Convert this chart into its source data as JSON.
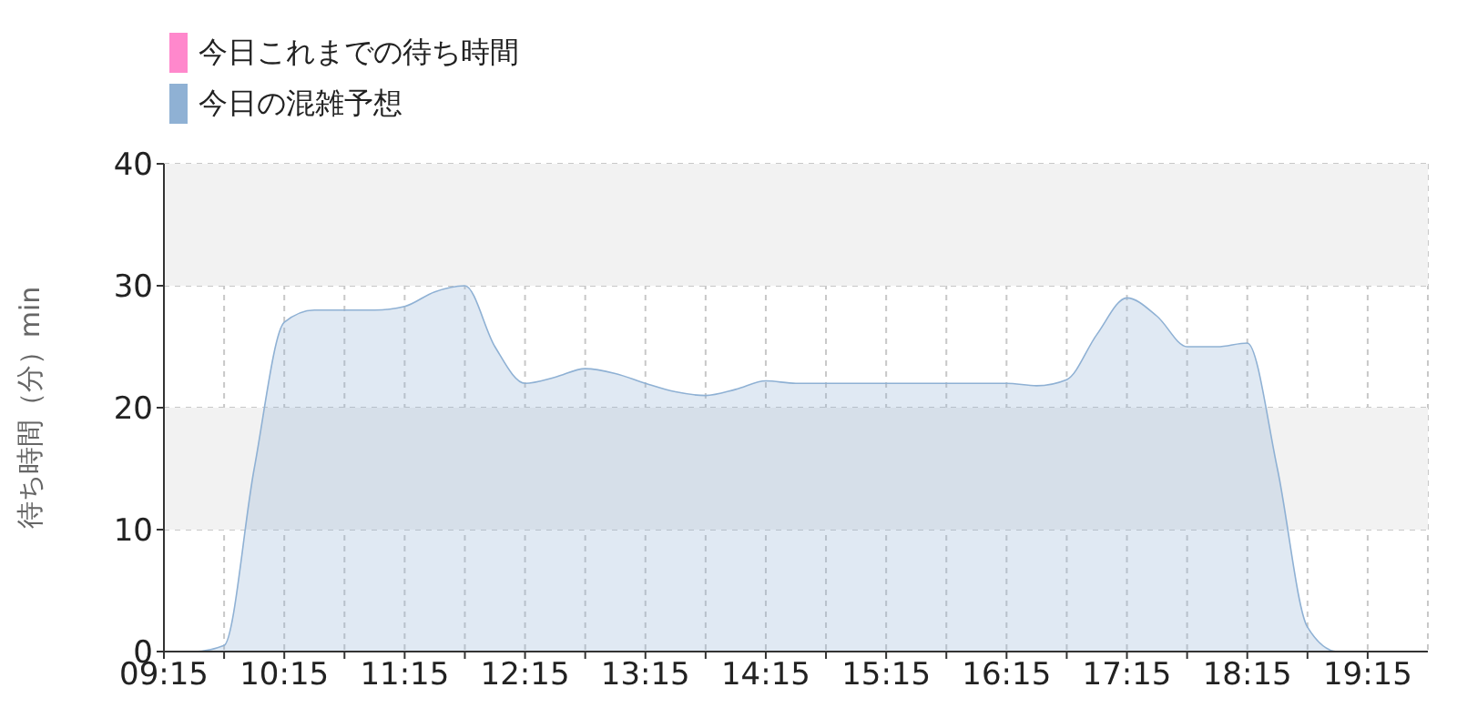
{
  "chart_data": {
    "type": "area",
    "ylabel": "待ち時間（分）min",
    "legend": "top left",
    "grid": true,
    "x": [
      9.25,
      9.5,
      9.75,
      10.0,
      10.25,
      10.5,
      10.75,
      11.0,
      11.25,
      11.5,
      11.75,
      12.0,
      12.25,
      12.5,
      12.75,
      13.0,
      13.25,
      13.5,
      13.75,
      14.0,
      14.25,
      14.5,
      14.75,
      15.0,
      15.25,
      15.5,
      15.75,
      16.0,
      16.25,
      16.5,
      16.75,
      17.0,
      17.25,
      17.5,
      17.75,
      18.0,
      18.25,
      18.5,
      18.75,
      19.0,
      19.25,
      19.5,
      19.75
    ],
    "series": [
      {
        "name": "今日これまでの待ち時間",
        "color": "#ff88cc",
        "values": [
          null,
          null,
          null,
          null,
          null,
          null,
          null,
          null,
          null,
          null,
          null,
          null,
          null,
          null,
          null,
          null,
          null,
          null,
          null,
          null,
          null,
          null,
          null,
          null,
          null,
          null,
          null,
          null,
          null,
          null,
          null,
          null,
          null,
          null,
          null,
          null,
          null,
          null,
          null,
          null,
          null,
          null,
          null
        ]
      },
      {
        "name": "今日の混雑予想",
        "color": "#8fb1d4",
        "values": [
          0,
          0,
          0.5,
          15,
          27,
          28,
          28,
          28,
          28.3,
          29.5,
          30,
          25,
          22,
          22.5,
          23.2,
          22.8,
          22,
          21.3,
          21,
          21.5,
          22.2,
          22,
          22,
          22,
          22,
          22,
          22,
          22,
          22,
          21.8,
          22.3,
          26,
          29,
          27.5,
          25,
          25,
          25.3,
          15,
          2,
          0,
          0,
          0,
          0
        ]
      }
    ],
    "xlim": [
      9.25,
      19.75
    ],
    "xticks": [
      {
        "value": 9.25,
        "label": "09:15"
      },
      {
        "value": 9.75,
        "label": null
      },
      {
        "value": 10.25,
        "label": "10:15"
      },
      {
        "value": 10.75,
        "label": null
      },
      {
        "value": 11.25,
        "label": "11:15"
      },
      {
        "value": 11.75,
        "label": null
      },
      {
        "value": 12.25,
        "label": "12:15"
      },
      {
        "value": 12.75,
        "label": null
      },
      {
        "value": 13.25,
        "label": "13:15"
      },
      {
        "value": 13.75,
        "label": null
      },
      {
        "value": 14.25,
        "label": "14:15"
      },
      {
        "value": 14.75,
        "label": null
      },
      {
        "value": 15.25,
        "label": "15:15"
      },
      {
        "value": 15.75,
        "label": null
      },
      {
        "value": 16.25,
        "label": "16:15"
      },
      {
        "value": 16.75,
        "label": null
      },
      {
        "value": 17.25,
        "label": "17:15"
      },
      {
        "value": 17.75,
        "label": null
      },
      {
        "value": 18.25,
        "label": "18:15"
      },
      {
        "value": 18.75,
        "label": null
      },
      {
        "value": 19.25,
        "label": "19:15"
      }
    ],
    "ylim": [
      0,
      40
    ],
    "yticks": [
      0,
      10,
      20,
      30,
      40
    ],
    "bands": [
      {
        "axis": "y",
        "from": 10,
        "to": 20,
        "color": "#f2f2f2"
      },
      {
        "axis": "y",
        "from": 30,
        "to": 40,
        "color": "#f2f2f2"
      }
    ]
  }
}
